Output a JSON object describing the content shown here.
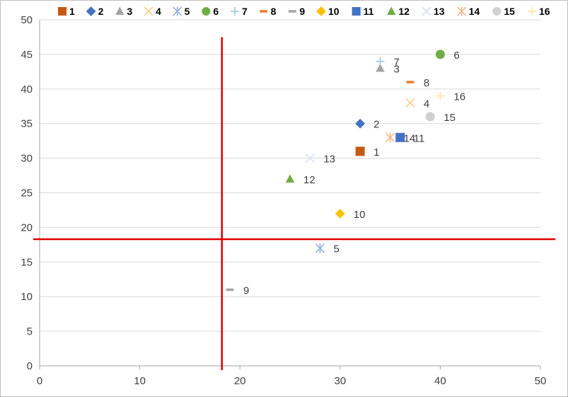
{
  "chart_data": {
    "type": "scatter",
    "title": "",
    "xlabel": "",
    "ylabel": "",
    "xlim": [
      0,
      50
    ],
    "ylim": [
      0,
      50
    ],
    "xticks": [
      "0",
      "10",
      "20",
      "30",
      "40",
      "50"
    ],
    "yticks": [
      "0",
      "5",
      "10",
      "15",
      "20",
      "25",
      "30",
      "35",
      "40",
      "45",
      "50"
    ],
    "grid": "horizontal",
    "legend_position": "top",
    "series": [
      {
        "name": "1",
        "label": "1",
        "x": 32,
        "y": 31,
        "marker": "square",
        "color": "#C55A11"
      },
      {
        "name": "2",
        "label": "2",
        "x": 32,
        "y": 35,
        "marker": "diamond",
        "color": "#4472C4"
      },
      {
        "name": "3",
        "label": "3",
        "x": 34,
        "y": 43,
        "marker": "triangle",
        "color": "#A5A5A5"
      },
      {
        "name": "4",
        "label": "4",
        "x": 37,
        "y": 38,
        "marker": "x",
        "color": "#F8CB8C"
      },
      {
        "name": "5",
        "label": "5",
        "x": 28,
        "y": 17,
        "marker": "star",
        "color": "#8FAADC"
      },
      {
        "name": "6",
        "label": "6",
        "x": 40,
        "y": 45,
        "marker": "circle",
        "color": "#70AD47"
      },
      {
        "name": "7",
        "label": "7",
        "x": 34,
        "y": 44,
        "marker": "plus",
        "color": "#9DC3E6"
      },
      {
        "name": "8",
        "label": "8",
        "x": 37,
        "y": 41,
        "marker": "dash",
        "color": "#ED7D31"
      },
      {
        "name": "9",
        "label": "9",
        "x": 19,
        "y": 11,
        "marker": "dash",
        "color": "#A5A5A5"
      },
      {
        "name": "10",
        "label": "10",
        "x": 30,
        "y": 22,
        "marker": "diamond",
        "color": "#FFC000"
      },
      {
        "name": "11",
        "label": "11",
        "x": 36,
        "y": 33,
        "marker": "square",
        "color": "#4472C4"
      },
      {
        "name": "12",
        "label": "12",
        "x": 25,
        "y": 27,
        "marker": "triangle",
        "color": "#70AD47"
      },
      {
        "name": "13",
        "label": "13",
        "x": 27,
        "y": 30,
        "marker": "x",
        "color": "#D9E1F2"
      },
      {
        "name": "14",
        "label": "14",
        "x": 35,
        "y": 33,
        "marker": "star",
        "color": "#F4B183"
      },
      {
        "name": "15",
        "label": "15",
        "x": 39,
        "y": 36,
        "marker": "circle",
        "color": "#D0D0D0"
      },
      {
        "name": "16",
        "label": "16",
        "x": 40,
        "y": 39,
        "marker": "plus",
        "color": "#FFE699"
      }
    ],
    "reference_lines": [
      {
        "orientation": "vertical",
        "x": 18.2,
        "y_range": [
          0,
          47.5
        ],
        "color": "#E00000"
      },
      {
        "orientation": "horizontal",
        "y": 18.3,
        "x_range": [
          -0.5,
          51.5
        ],
        "color": "#E00000"
      }
    ]
  }
}
